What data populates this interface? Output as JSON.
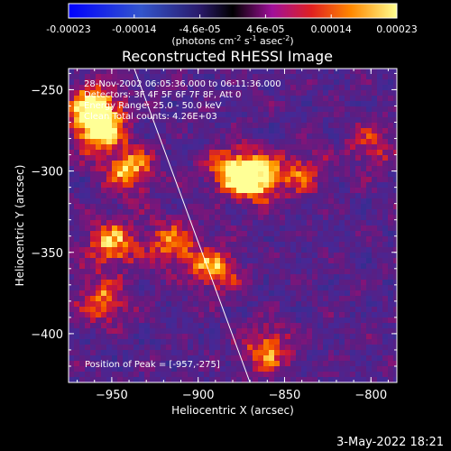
{
  "colorbar": {
    "tick_labels": [
      "-0.00023",
      "-0.00014",
      "-4.6e-05",
      "4.6e-05",
      "0.00014",
      "0.00023"
    ],
    "units_label": "(photons cm",
    "units_exp1": "-2",
    "units_mid": " s",
    "units_exp2": "-1",
    "units_tail": " asec",
    "units_exp3": "-2",
    "units_end": ")",
    "range": [
      -0.00023,
      0.00023
    ]
  },
  "chart_data": {
    "type": "heatmap",
    "title": "Reconstructed RHESSI Image",
    "xlabel": "Heliocentric X (arcsec)",
    "ylabel": "Heliocentric Y (arcsec)",
    "xlim": [
      -975,
      -785
    ],
    "ylim": [
      -430,
      -237
    ],
    "xticks": [
      -950,
      -900,
      -850,
      -800
    ],
    "yticks": [
      -400,
      -350,
      -300,
      -250
    ],
    "xtick_labels": [
      "−950",
      "−900",
      "−850",
      "−800"
    ],
    "ytick_labels": [
      "−400",
      "−350",
      "−300",
      "−250"
    ],
    "limb_line": {
      "x": [
        -937,
        -870
      ],
      "y": [
        -237,
        -430
      ]
    },
    "annotations": [
      "28-Nov-2002 06:05:36.000 to 06:11:36.000",
      "Detectors: 3F 4F 5F 6F 7F 8F, Att 0",
      "Energy Range: 25.0 - 50.0 keV",
      "Clean     Total counts: 4.26E+03"
    ],
    "peak_label": "Position of Peak = [-957,-275]",
    "peak": [
      -957,
      -275
    ],
    "bright_sources": [
      {
        "x": -960,
        "y": -260,
        "intensity": 0.9
      },
      {
        "x": -957,
        "y": -275,
        "intensity": 1.0
      },
      {
        "x": -940,
        "y": -300,
        "intensity": 0.8
      },
      {
        "x": -880,
        "y": -300,
        "intensity": 0.85
      },
      {
        "x": -865,
        "y": -305,
        "intensity": 0.9
      },
      {
        "x": -950,
        "y": -345,
        "intensity": 0.8
      },
      {
        "x": -890,
        "y": -360,
        "intensity": 0.75
      },
      {
        "x": -915,
        "y": -345,
        "intensity": 0.7
      },
      {
        "x": -955,
        "y": -380,
        "intensity": 0.65
      },
      {
        "x": -860,
        "y": -410,
        "intensity": 0.7
      },
      {
        "x": -840,
        "y": -300,
        "intensity": 0.5
      },
      {
        "x": -800,
        "y": -285,
        "intensity": 0.45
      }
    ]
  },
  "footer": {
    "date": "3-May-2022 18:21"
  }
}
